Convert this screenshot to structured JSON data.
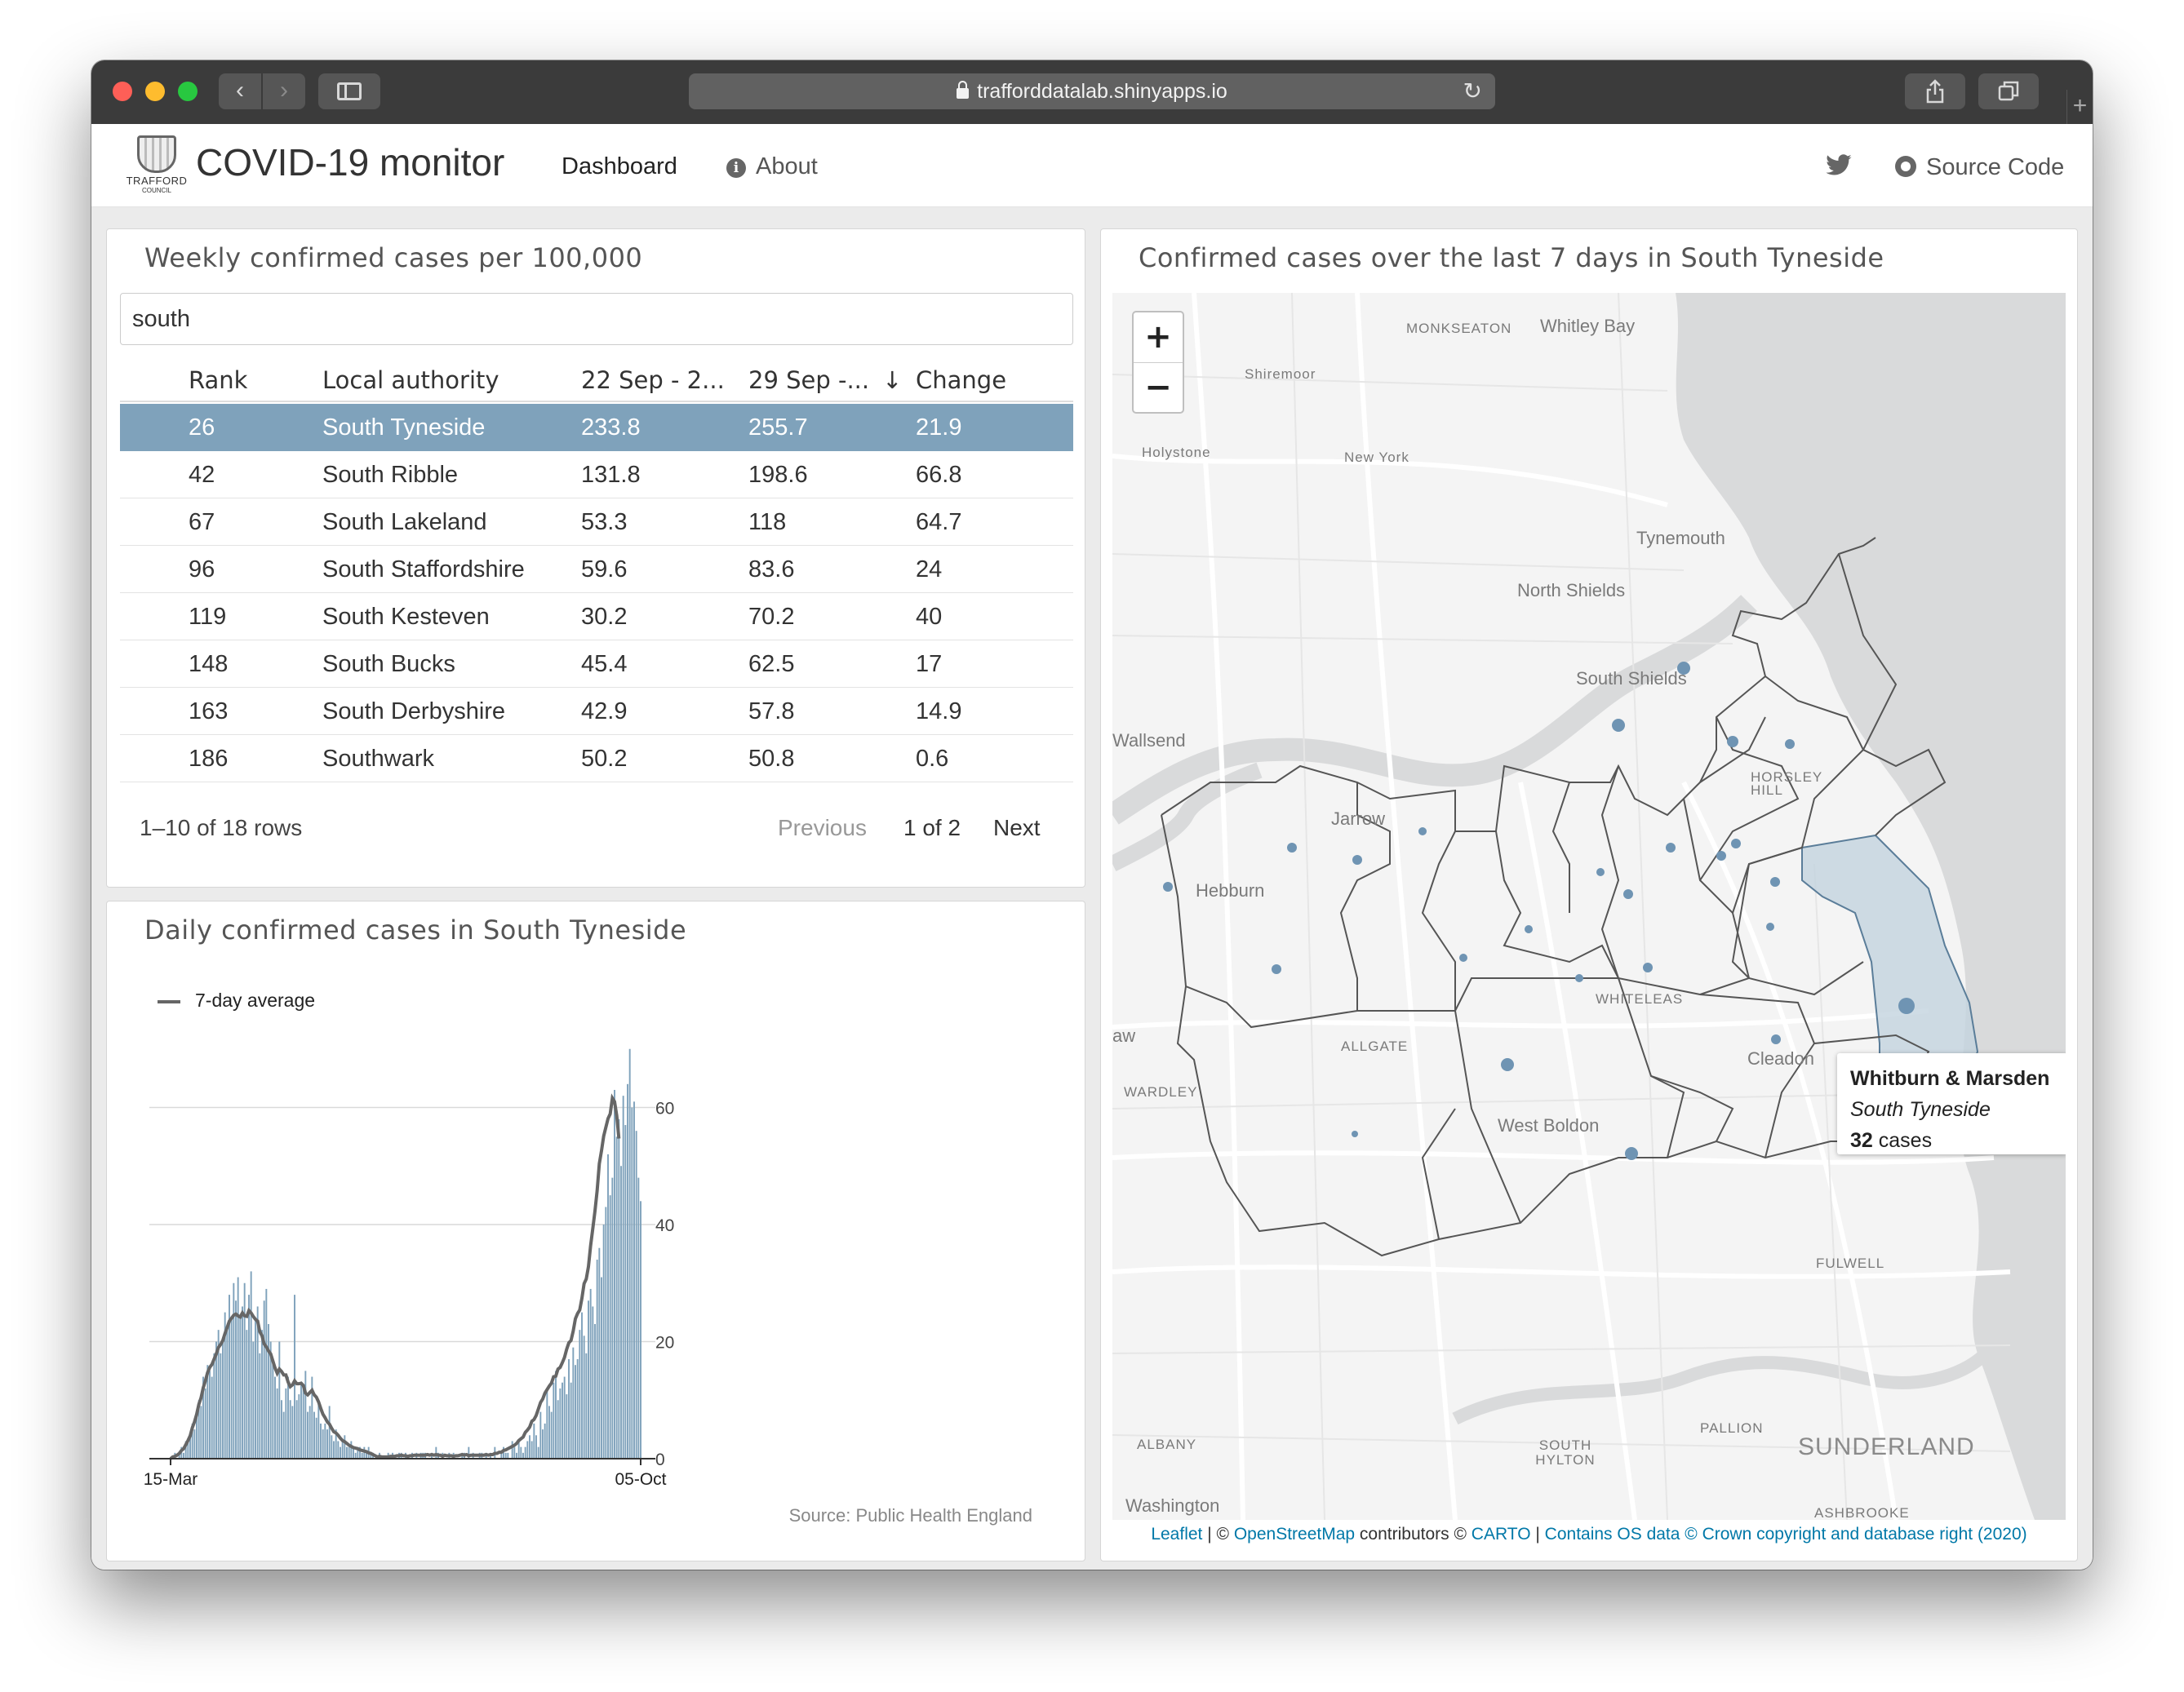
{
  "browser": {
    "url": "trafforddatalab.shinyapps.io"
  },
  "navbar": {
    "crest_line1": "TRAFFORD",
    "crest_line2": "COUNCIL",
    "app_title": "COVID-19 monitor",
    "dashboard": "Dashboard",
    "about": "About",
    "info_glyph": "i",
    "source_code": "Source Code"
  },
  "table_panel": {
    "title": "Weekly confirmed cases per 100,000",
    "search_value": "south",
    "columns": [
      "Rank",
      "Local authority",
      "22 Sep - 2...",
      "29 Sep -...",
      "Change"
    ],
    "sort_glyph": "↓",
    "rows": [
      [
        "26",
        "South Tyneside",
        "233.8",
        "255.7",
        "21.9"
      ],
      [
        "42",
        "South Ribble",
        "131.8",
        "198.6",
        "66.8"
      ],
      [
        "67",
        "South Lakeland",
        "53.3",
        "118",
        "64.7"
      ],
      [
        "96",
        "South Staffordshire",
        "59.6",
        "83.6",
        "24"
      ],
      [
        "119",
        "South Kesteven",
        "30.2",
        "70.2",
        "40"
      ],
      [
        "148",
        "South Bucks",
        "45.4",
        "62.5",
        "17"
      ],
      [
        "163",
        "South Derbyshire",
        "42.9",
        "57.8",
        "14.9"
      ],
      [
        "186",
        "Southwark",
        "50.2",
        "50.8",
        "0.6"
      ]
    ],
    "info": "1–10 of 18 rows",
    "prev": "Previous",
    "page": "1 of 2",
    "next": "Next"
  },
  "chart_panel": {
    "title": "Daily confirmed cases in South Tyneside",
    "legend": "7-day average",
    "source": "Source: Public Health England"
  },
  "chart_data": {
    "type": "bar",
    "title": "Daily confirmed cases in South Tyneside",
    "x_tick_labels": [
      "15-Mar",
      "05-Oct"
    ],
    "y_ticks": [
      0,
      20,
      40,
      60
    ],
    "ylim": [
      0,
      70
    ],
    "grid": true,
    "legend_position": "top-left",
    "series": [
      {
        "name": "daily",
        "values": [
          0,
          0,
          1,
          0,
          1,
          2,
          1,
          3,
          3,
          4,
          6,
          5,
          8,
          10,
          9,
          14,
          12,
          16,
          15,
          14,
          18,
          20,
          22,
          18,
          20,
          25,
          22,
          28,
          24,
          30,
          27,
          31,
          24,
          26,
          30,
          22,
          28,
          32,
          20,
          24,
          26,
          18,
          22,
          27,
          29,
          23,
          20,
          17,
          14,
          12,
          20,
          10,
          8,
          12,
          14,
          10,
          9,
          28,
          10,
          11,
          13,
          12,
          15,
          8,
          9,
          14,
          8,
          7,
          10,
          6,
          5,
          6,
          5,
          9,
          4,
          3,
          5,
          3,
          2,
          3,
          4,
          2,
          2,
          3,
          2,
          1,
          2,
          2,
          1,
          2,
          1,
          2,
          1,
          1,
          0,
          0,
          1,
          0,
          0,
          0,
          1,
          0,
          1,
          0,
          0,
          1,
          1,
          0,
          1,
          0,
          0,
          1,
          0,
          1,
          0,
          1,
          1,
          1,
          0,
          0,
          1,
          0,
          2,
          1,
          0,
          1,
          0,
          0,
          1,
          0,
          1,
          0,
          0,
          0,
          1,
          1,
          0,
          2,
          0,
          1,
          0,
          0,
          1,
          1,
          0,
          1,
          0,
          1,
          0,
          2,
          0,
          0,
          1,
          2,
          1,
          1,
          0,
          3,
          2,
          1,
          3,
          2,
          1,
          2,
          3,
          4,
          3,
          6,
          4,
          2,
          8,
          5,
          6,
          12,
          9,
          8,
          13,
          15,
          10,
          12,
          13,
          14,
          11,
          17,
          13,
          19,
          16,
          17,
          22,
          25,
          21,
          18,
          27,
          29,
          26,
          23,
          34,
          36,
          31,
          40,
          43,
          52,
          45,
          48,
          63,
          55,
          58,
          50,
          62,
          57,
          64,
          70,
          60,
          61,
          56,
          48,
          44
        ]
      },
      {
        "name": "7-day average",
        "values": [
          0,
          0.3,
          0.4,
          0.6,
          0.9,
          1.4,
          1.7,
          2.4,
          3.1,
          3.9,
          5.3,
          6.3,
          7.6,
          9.3,
          10.4,
          12.1,
          13.3,
          14.7,
          15.6,
          16.1,
          17,
          17.9,
          19,
          19.5,
          20.2,
          21.4,
          22.4,
          23.5,
          24,
          24.5,
          24.7,
          24.4,
          24.2,
          24.9,
          24.4,
          24.3,
          25.3,
          24.9,
          24.3,
          23.8,
          23.5,
          21.7,
          21,
          19.6,
          19.1,
          18.4,
          17.9,
          16.7,
          15.5,
          14.6,
          15.3,
          14.9,
          14.3,
          14.3,
          13.1,
          12.3,
          12.6,
          13.3,
          12.8,
          12.8,
          12.9,
          12.5,
          11.2,
          10.9,
          11.3,
          11.7,
          10.9,
          10.5,
          9.7,
          8.6,
          7.6,
          7,
          6.3,
          5.9,
          5.2,
          4.6,
          4.4,
          4,
          3.5,
          3.1,
          2.9,
          2.6,
          2.3,
          2.1,
          1.9,
          1.8,
          1.7,
          1.5,
          1.4,
          1.3,
          1.2,
          1,
          0.9,
          0.7,
          0.5,
          0.3,
          0.4,
          0.3,
          0.3,
          0.3,
          0.3,
          0.4,
          0.4,
          0.4,
          0.5,
          0.5,
          0.6,
          0.5,
          0.5,
          0.4,
          0.5,
          0.5,
          0.6,
          0.6,
          0.6,
          0.6,
          0.6,
          0.6,
          0.7,
          0.6,
          0.7,
          0.6,
          0.7,
          0.6,
          0.6,
          0.4,
          0.6,
          0.5,
          0.5,
          0.5,
          0.4,
          0.5,
          0.5,
          0.6,
          0.7,
          0.6,
          0.7,
          0.5,
          0.6,
          0.6,
          0.6,
          0.6,
          0.6,
          0.6,
          0.6,
          0.7,
          0.6,
          0.7,
          0.7,
          0.9,
          0.9,
          1.1,
          1.1,
          1.4,
          1.5,
          1.7,
          1.9,
          2.1,
          2.3,
          2.6,
          3.1,
          3.4,
          3.7,
          4.5,
          4.9,
          5.4,
          6.4,
          6.7,
          7.4,
          8.5,
          9.6,
          10.2,
          11.2,
          11.8,
          12.4,
          12.9,
          14,
          14.1,
          15.3,
          15.6,
          16.4,
          17.3,
          18.7,
          19.8,
          20.2,
          21.8,
          23.9,
          24.8,
          25.4,
          27.4,
          29.9,
          30.7,
          32.8,
          36.4,
          39.3,
          42.3,
          45.8,
          50.4,
          52.6,
          55.1,
          56.6,
          58.1,
          58.9,
          61.6,
          61,
          58.6,
          54.7
        ]
      }
    ]
  },
  "map_panel": {
    "title": "Confirmed cases over the last 7 days in South Tyneside",
    "zoom_in": "+",
    "zoom_out": "−",
    "tooltip": {
      "name": "Whitburn & Marsden",
      "authority": "South Tyneside",
      "count": "32",
      "count_suffix": "cases"
    },
    "labels": [
      "MONKSEATON",
      "Whitley Bay",
      "Shiremoor",
      "Holystone",
      "New York",
      "Tynemouth",
      "North Shields",
      "South Shields",
      "Wallsend",
      "HORSLEY HILL",
      "Jarrow",
      "Hebburn",
      "WHITELEAS",
      "ALLGATE",
      "aw",
      "WARDLEY",
      "Cleadon",
      "West Boldon",
      "FULWELL",
      "ALBANY",
      "SOUTH HYLTON",
      "PALLION",
      "SUNDERLAND",
      "Washington",
      "ASHBROOKE"
    ],
    "attribution": {
      "leaflet": "Leaflet",
      "sep1": " | © ",
      "osm": "OpenStreetMap",
      "contrib": " contributors © ",
      "carto": "CARTO",
      "sep2": " | ",
      "os": "Contains OS data © Crown copyright and database right (2020)"
    }
  },
  "colors": {
    "accent": "#7fa2bb",
    "bar": "#7fa2bb",
    "line": "#666666",
    "highlight_fill": "#c3d3df"
  }
}
